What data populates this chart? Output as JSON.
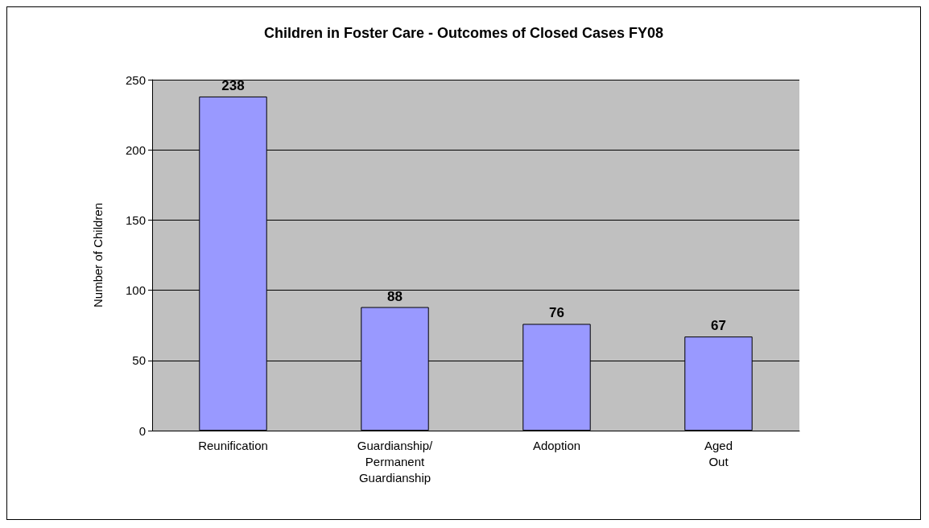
{
  "chart_data": {
    "type": "bar",
    "title": "Children in Foster Care - Outcomes of Closed Cases FY08",
    "ylabel": "Number of Children",
    "categories": [
      "Reunification",
      "Guardianship/\nPermanent\nGuardianship",
      "Adoption",
      "Aged\nOut"
    ],
    "values": [
      238,
      88,
      76,
      67
    ],
    "color": "#9999ff",
    "ylim": [
      0,
      250
    ],
    "yticks": [
      0,
      50,
      100,
      150,
      200,
      250
    ],
    "grid": "y",
    "data_labels": true
  }
}
